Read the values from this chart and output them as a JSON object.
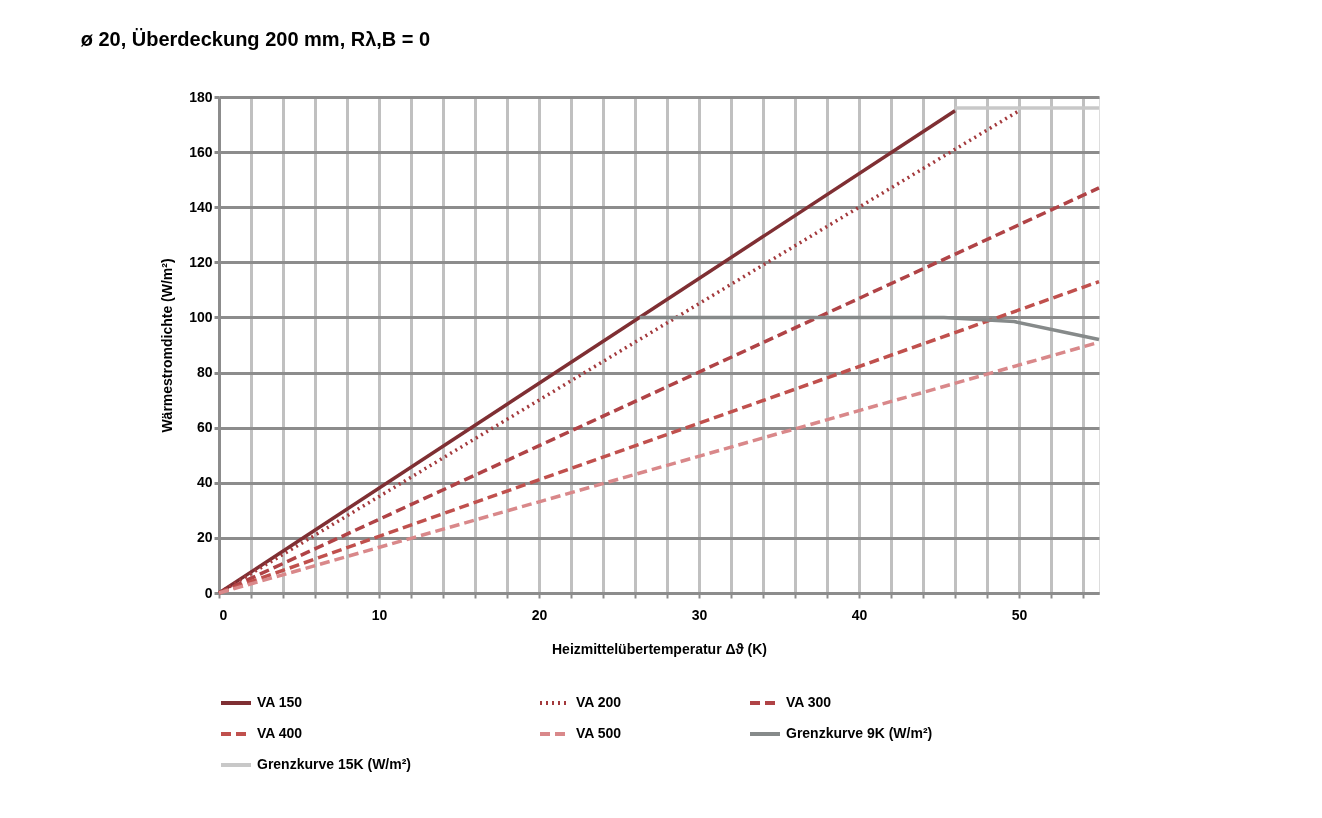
{
  "chart_data": {
    "type": "line",
    "title": "ø 20, Überdeckung 200 mm,  Rλ,B = 0",
    "xlabel": "Heizmittelübertemperatur Δϑ (K)",
    "ylabel": "Wärmestromdichte (W/m²)",
    "xlim": [
      0,
      55
    ],
    "ylim": [
      0,
      180
    ],
    "xticks": [
      0,
      {
        "value": 2,
        "label": null
      },
      {
        "value": 4,
        "label": null
      },
      {
        "value": 6,
        "label": null
      },
      {
        "value": 8,
        "label": null
      },
      10,
      {
        "value": 12,
        "label": null
      },
      {
        "value": 14,
        "label": null
      },
      {
        "value": 16,
        "label": null
      },
      {
        "value": 18,
        "label": null
      },
      20,
      {
        "value": 22,
        "label": null
      },
      {
        "value": 24,
        "label": null
      },
      {
        "value": 26,
        "label": null
      },
      {
        "value": 28,
        "label": null
      },
      30,
      {
        "value": 32,
        "label": null
      },
      {
        "value": 34,
        "label": null
      },
      {
        "value": 36,
        "label": null
      },
      {
        "value": 38,
        "label": null
      },
      40,
      {
        "value": 42,
        "label": null
      },
      {
        "value": 44,
        "label": null
      },
      {
        "value": 46,
        "label": null
      },
      {
        "value": 48,
        "label": null
      },
      50,
      {
        "value": 52,
        "label": null
      },
      {
        "value": 54,
        "label": null
      }
    ],
    "yticks": [
      0,
      20,
      40,
      60,
      80,
      100,
      120,
      140,
      160,
      180
    ],
    "grid": true,
    "legend": "bottom",
    "marker": "none",
    "series": [
      {
        "name": "VA 150",
        "color": "#7f2f33",
        "line_style": "solid",
        "x": [
          0,
          46
        ],
        "values": [
          0,
          175
        ]
      },
      {
        "name": "VA 200",
        "color": "#a3393c",
        "line_style": "dotted",
        "x": [
          0,
          50
        ],
        "values": [
          0,
          175
        ]
      },
      {
        "name": "VA 300",
        "color": "#b04346",
        "line_style": "dashed",
        "x": [
          0,
          55
        ],
        "values": [
          0,
          147
        ]
      },
      {
        "name": "VA 400",
        "color": "#c0504d",
        "line_style": "dashed",
        "x": [
          0,
          55
        ],
        "values": [
          0,
          113
        ]
      },
      {
        "name": "VA 500",
        "color": "#d9888a",
        "line_style": "dashed",
        "x": [
          0,
          55
        ],
        "values": [
          0,
          91
        ]
      },
      {
        "name": "Grenzkurve 9K (W/m²)",
        "color": "#868a8a",
        "line_style": "solid",
        "x": [
          26.3,
          45.3,
          49.7,
          55
        ],
        "values": [
          100,
          100,
          98.5,
          92
        ]
      },
      {
        "name": "Grenzkurve 15K (W/m²)",
        "color": "#c8c8c8",
        "line_style": "solid",
        "x": [
          46,
          55
        ],
        "values": [
          176,
          176
        ]
      }
    ]
  }
}
